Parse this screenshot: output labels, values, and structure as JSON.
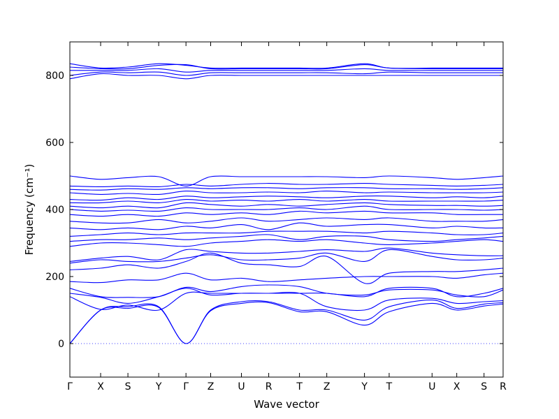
{
  "chart_data": {
    "type": "line",
    "title": "",
    "xlabel": "Wave vector",
    "ylabel": "Frequency (cm⁻¹)",
    "ylim": [
      -100,
      900
    ],
    "yticks": [
      0,
      200,
      400,
      600,
      800
    ],
    "ytick_labels": [
      "0",
      "200",
      "400",
      "600",
      "800"
    ],
    "xlim": [
      0,
      1
    ],
    "grid": false,
    "legend": "none",
    "line_color": "#0000ff",
    "zero_line_color": "#0000ff",
    "kpoints": [
      {
        "label": "Γ",
        "x": 0.0
      },
      {
        "label": "X",
        "x": 0.071
      },
      {
        "label": "S",
        "x": 0.134
      },
      {
        "label": "Y",
        "x": 0.205
      },
      {
        "label": "Γ",
        "x": 0.268
      },
      {
        "label": "Z",
        "x": 0.325
      },
      {
        "label": "U",
        "x": 0.396
      },
      {
        "label": "R",
        "x": 0.459
      },
      {
        "label": "T",
        "x": 0.53
      },
      {
        "label": "Z",
        "x": 0.593
      },
      {
        "label": "Y",
        "x": 0.68
      },
      {
        "label": "T",
        "x": 0.737
      },
      {
        "label": "U",
        "x": 0.836
      },
      {
        "label": "X",
        "x": 0.893
      },
      {
        "label": "S",
        "x": 0.956
      },
      {
        "label": "R",
        "x": 1.0
      }
    ],
    "series": [
      {
        "values": [
          0,
          100,
          105,
          108,
          0,
          98,
          120,
          122,
          95,
          95,
          55,
          95,
          120,
          100,
          112,
          118
        ]
      },
      {
        "values": [
          0,
          100,
          110,
          110,
          0,
          100,
          125,
          125,
          100,
          100,
          70,
          110,
          130,
          105,
          118,
          122
        ]
      },
      {
        "values": [
          140,
          102,
          115,
          100,
          150,
          150,
          150,
          150,
          150,
          110,
          100,
          130,
          135,
          120,
          125,
          128
        ]
      },
      {
        "values": [
          150,
          138,
          120,
          140,
          165,
          145,
          150,
          150,
          150,
          150,
          140,
          165,
          165,
          140,
          150,
          165
        ]
      },
      {
        "values": [
          165,
          140,
          138,
          140,
          168,
          155,
          170,
          175,
          170,
          150,
          145,
          160,
          160,
          145,
          140,
          160
        ]
      },
      {
        "values": [
          185,
          182,
          190,
          190,
          210,
          190,
          195,
          185,
          190,
          195,
          200,
          200,
          200,
          195,
          205,
          210
        ]
      },
      {
        "values": [
          220,
          225,
          235,
          225,
          245,
          270,
          240,
          235,
          230,
          260,
          180,
          210,
          215,
          215,
          220,
          225
        ]
      },
      {
        "values": [
          240,
          250,
          245,
          245,
          255,
          265,
          250,
          250,
          255,
          270,
          245,
          280,
          260,
          250,
          250,
          255
        ]
      },
      {
        "values": [
          245,
          255,
          260,
          250,
          280,
          275,
          270,
          270,
          275,
          280,
          275,
          285,
          270,
          265,
          262,
          262
        ]
      },
      {
        "values": [
          290,
          300,
          300,
          295,
          290,
          300,
          305,
          310,
          305,
          310,
          300,
          295,
          300,
          305,
          310,
          305
        ]
      },
      {
        "values": [
          305,
          310,
          310,
          315,
          310,
          315,
          320,
          325,
          310,
          320,
          320,
          310,
          305,
          310,
          315,
          320
        ]
      },
      {
        "values": [
          320,
          325,
          330,
          325,
          330,
          330,
          330,
          335,
          335,
          335,
          330,
          335,
          330,
          325,
          325,
          330
        ]
      },
      {
        "values": [
          345,
          340,
          345,
          340,
          350,
          345,
          355,
          340,
          360,
          350,
          355,
          355,
          345,
          350,
          345,
          345
        ]
      },
      {
        "values": [
          365,
          360,
          360,
          370,
          360,
          365,
          375,
          365,
          370,
          375,
          370,
          375,
          365,
          365,
          365,
          370
        ]
      },
      {
        "values": [
          385,
          380,
          385,
          380,
          390,
          385,
          390,
          385,
          395,
          390,
          395,
          390,
          390,
          385,
          385,
          385
        ]
      },
      {
        "values": [
          400,
          395,
          398,
          395,
          405,
          400,
          400,
          400,
          405,
          400,
          410,
          400,
          400,
          400,
          398,
          400
        ]
      },
      {
        "values": [
          410,
          405,
          410,
          405,
          420,
          415,
          410,
          415,
          410,
          415,
          420,
          415,
          412,
          412,
          410,
          412
        ]
      },
      {
        "values": [
          420,
          420,
          425,
          420,
          430,
          425,
          428,
          425,
          430,
          425,
          430,
          425,
          425,
          425,
          425,
          428
        ]
      },
      {
        "values": [
          430,
          428,
          435,
          430,
          440,
          435,
          438,
          440,
          438,
          435,
          440,
          440,
          435,
          438,
          435,
          440
        ]
      },
      {
        "values": [
          450,
          445,
          448,
          445,
          455,
          450,
          450,
          452,
          450,
          455,
          450,
          452,
          450,
          450,
          450,
          452
        ]
      },
      {
        "values": [
          460,
          458,
          462,
          460,
          465,
          462,
          465,
          465,
          462,
          465,
          465,
          462,
          462,
          460,
          462,
          465
        ]
      },
      {
        "values": [
          470,
          468,
          470,
          468,
          475,
          470,
          475,
          478,
          475,
          475,
          478,
          475,
          472,
          470,
          472,
          475
        ]
      },
      {
        "values": [
          500,
          490,
          495,
          498,
          470,
          498,
          498,
          498,
          498,
          498,
          495,
          500,
          495,
          490,
          495,
          500
        ]
      },
      {
        "values": [
          790,
          805,
          800,
          800,
          790,
          800,
          800,
          800,
          800,
          800,
          800,
          800,
          800,
          800,
          800,
          800
        ]
      },
      {
        "values": [
          800,
          810,
          808,
          810,
          800,
          808,
          808,
          808,
          808,
          808,
          805,
          810,
          808,
          808,
          808,
          808
        ]
      },
      {
        "values": [
          815,
          815,
          815,
          820,
          810,
          815,
          815,
          815,
          815,
          815,
          820,
          815,
          815,
          815,
          815,
          815
        ]
      },
      {
        "values": [
          825,
          820,
          820,
          830,
          832,
          820,
          820,
          820,
          820,
          820,
          832,
          822,
          820,
          820,
          820,
          820
        ]
      },
      {
        "values": [
          835,
          822,
          825,
          835,
          830,
          822,
          822,
          822,
          822,
          822,
          835,
          822,
          822,
          822,
          822,
          822
        ]
      }
    ]
  }
}
